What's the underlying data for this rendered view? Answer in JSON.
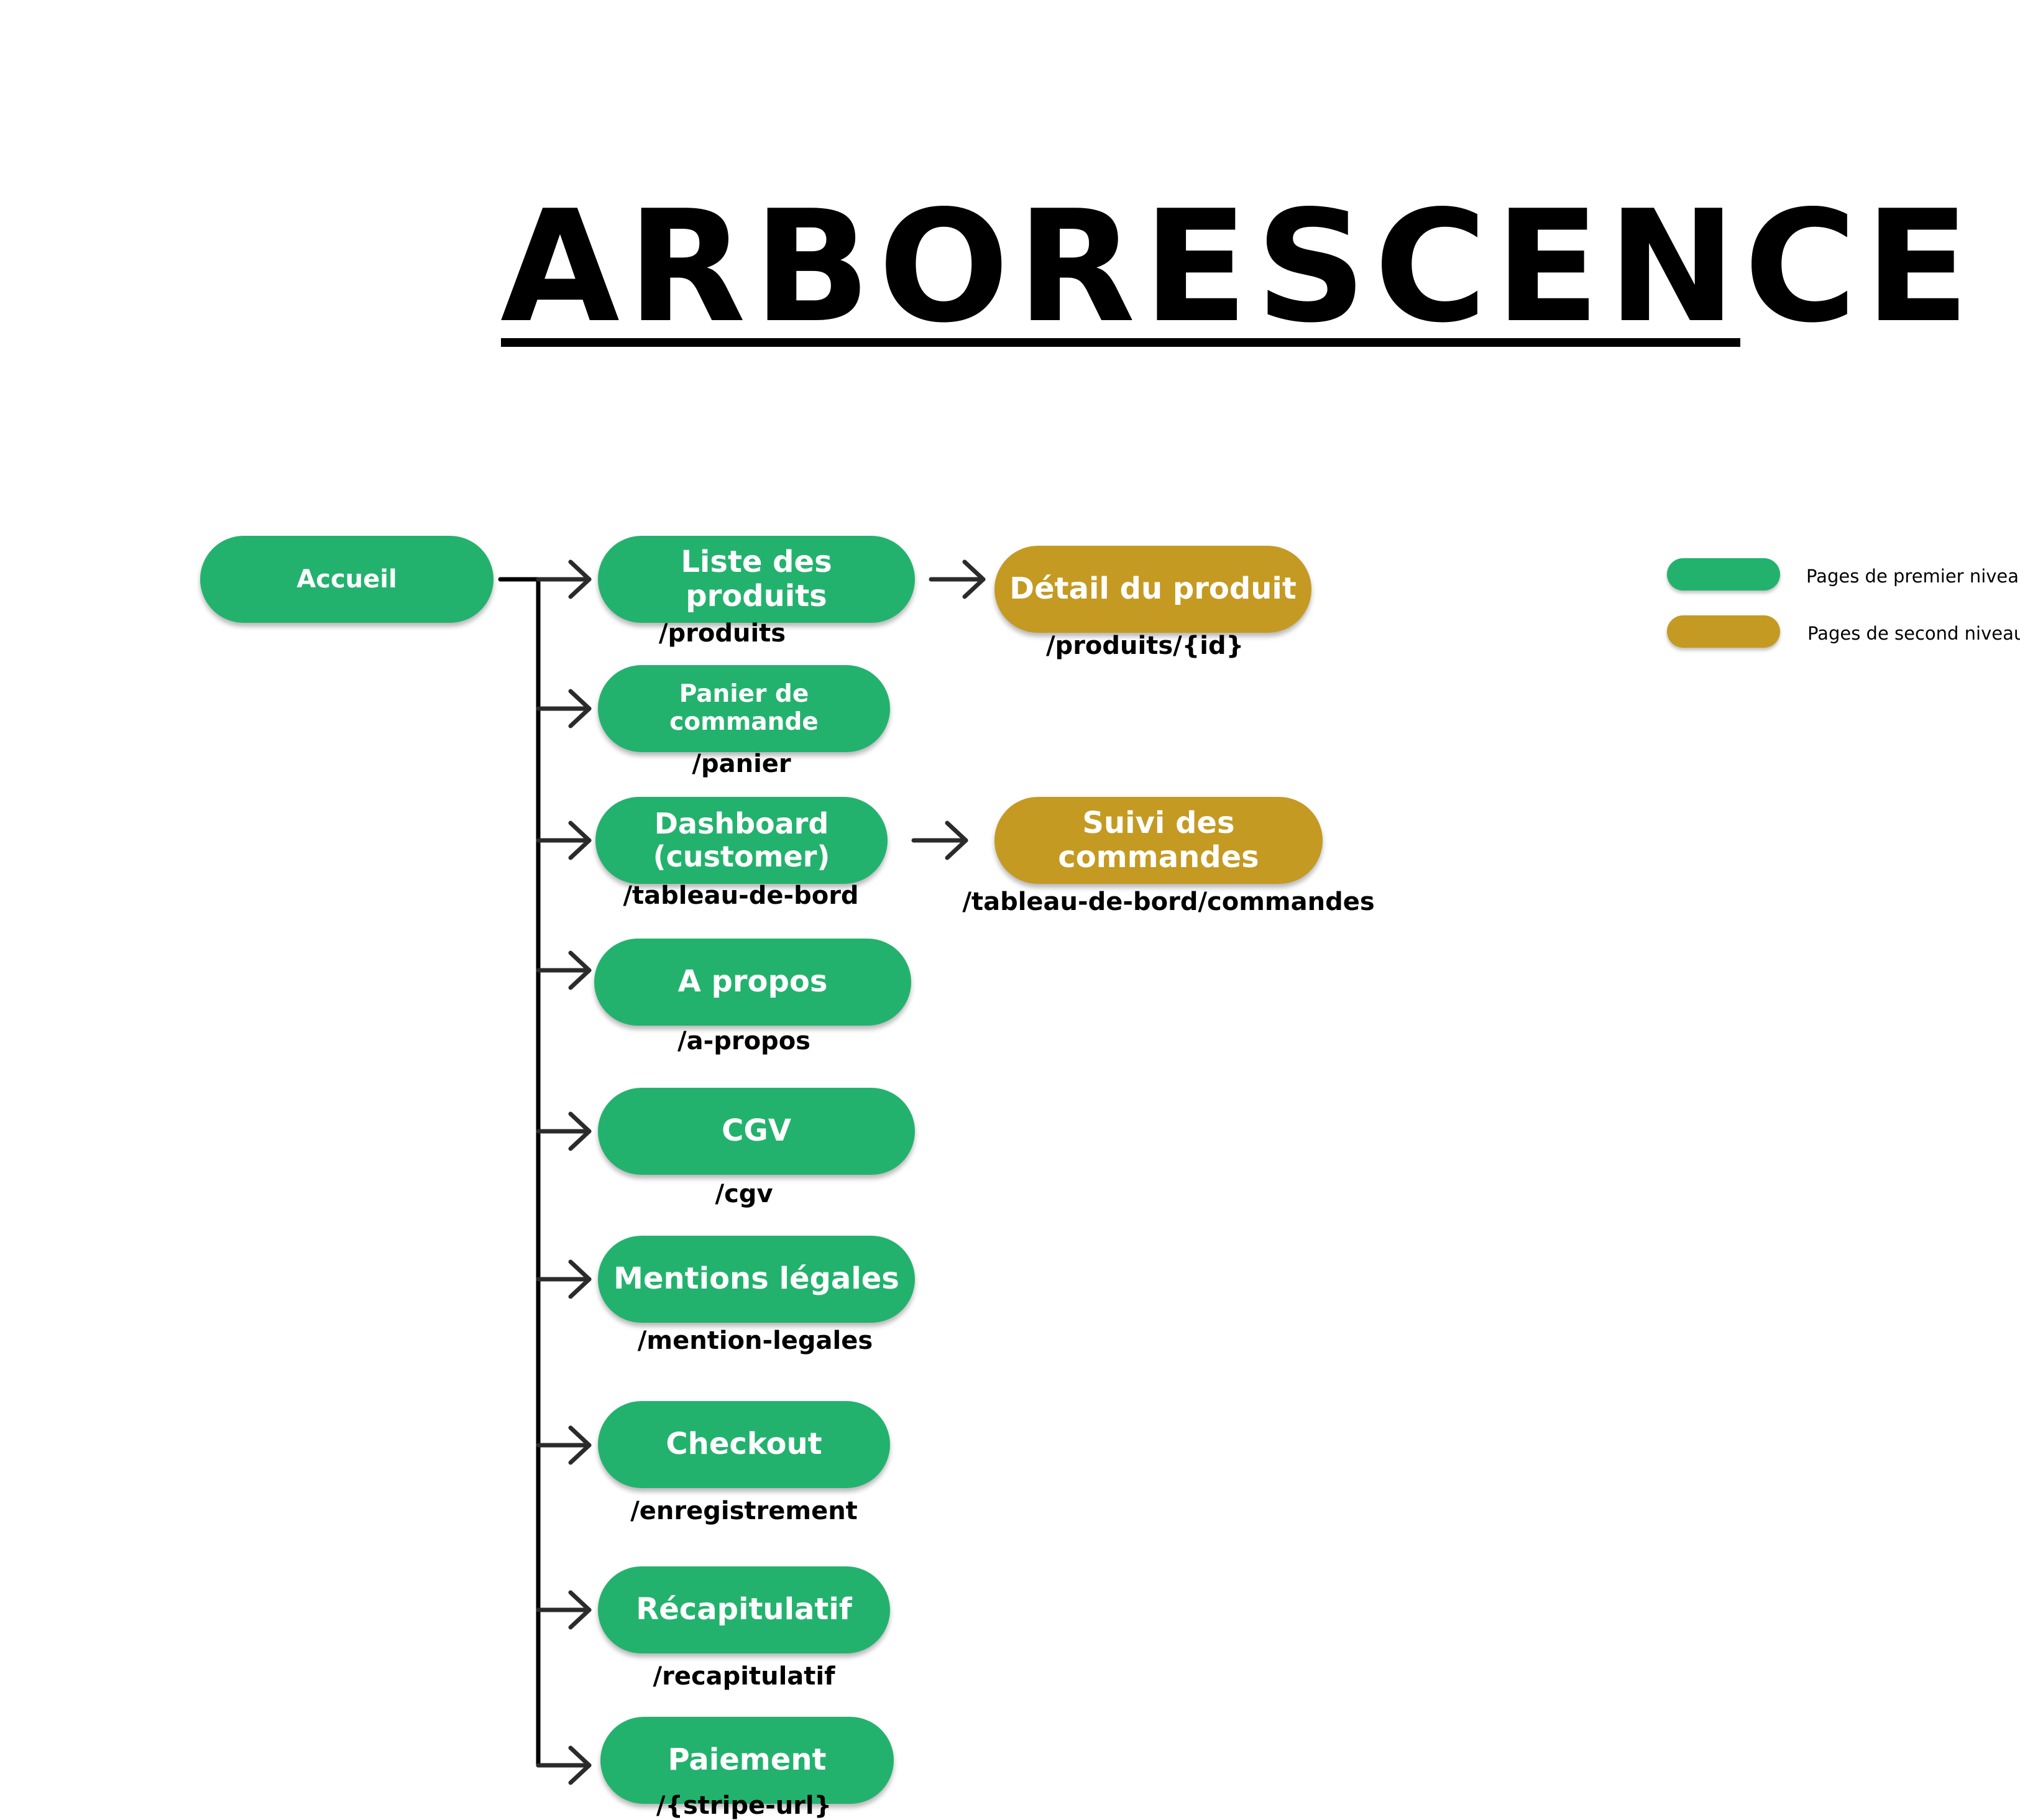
{
  "title": "ARBORESCENCE",
  "colors": {
    "first_level": "#23b26d",
    "second_level": "#c49a22",
    "connector": "#000000"
  },
  "legend": {
    "first_level_label": "Pages de premier niveau",
    "second_level_label": "Pages de second niveau"
  },
  "root": {
    "label": "Accueil"
  },
  "pages": [
    {
      "label": "Liste des produits",
      "route": "/produits"
    },
    {
      "label": "Panier de commande",
      "route": "/panier"
    },
    {
      "label": "Dashboard (customer)",
      "route": "/tableau-de-bord"
    },
    {
      "label": "A propos",
      "route": "/a-propos"
    },
    {
      "label": "CGV",
      "route": "/cgv"
    },
    {
      "label": "Mentions légales",
      "route": "/mention-legales"
    },
    {
      "label": "Checkout",
      "route": "/enregistrement"
    },
    {
      "label": "Récapitulatif",
      "route": "/recapitulatif"
    },
    {
      "label": "Paiement",
      "route": "/{stripe-url}"
    }
  ],
  "subpages": [
    {
      "label": "Détail du produit",
      "route": "/produits/{id}"
    },
    {
      "label": "Suivi des commandes",
      "route": "/tableau-de-bord/commandes"
    }
  ]
}
